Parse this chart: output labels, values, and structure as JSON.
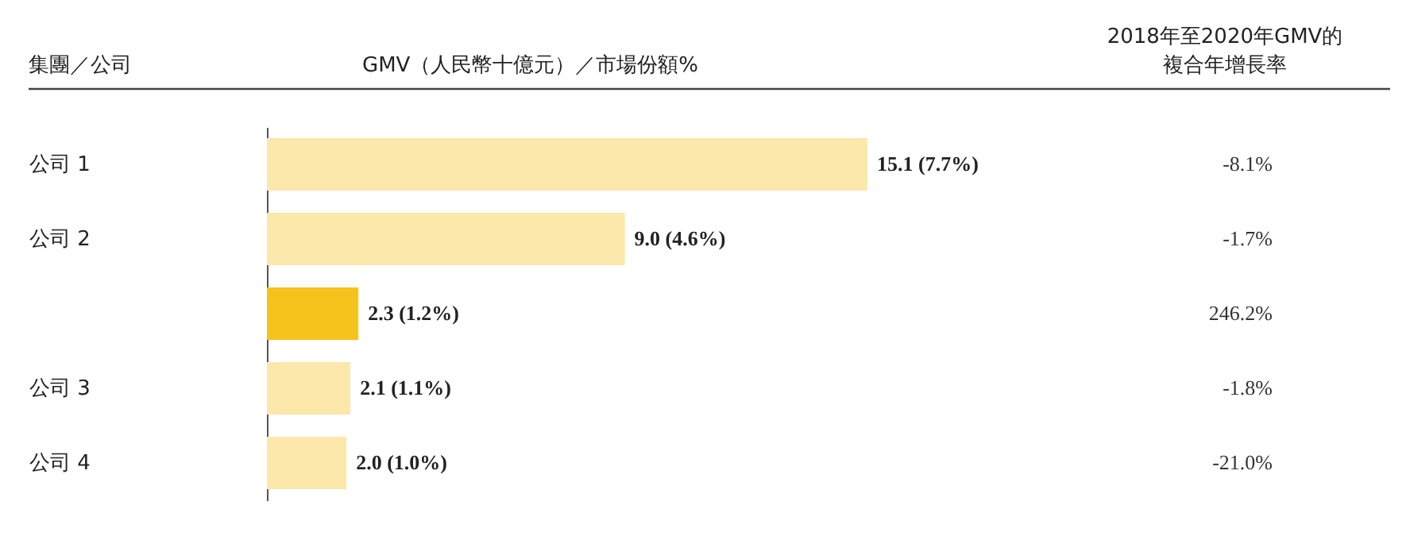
{
  "chart_data": {
    "type": "bar",
    "orientation": "horizontal",
    "categories": [
      "公司 1",
      "公司 2",
      null,
      "公司 3",
      "公司 4"
    ],
    "values": [
      15.1,
      9.0,
      2.3,
      2.1,
      2.0
    ],
    "colors": [
      "#fbe8aa",
      "#fbe8aa",
      "#f6c21c",
      "#fbe8aa",
      "#fbe8aa"
    ],
    "value_labels": [
      "15.1 (7.7%)",
      "9.0 (4.6%)",
      "2.3 (1.2%)",
      "2.1 (1.1%)",
      "2.0 (1.0%)"
    ],
    "annotations": [
      "集團／公司",
      "GMV（人民幣十億元）／市場份額%",
      "2018年至2020年GMV的",
      "複合年增長率",
      "-8.1%",
      "-1.7%",
      "246.2%",
      "-1.8%",
      "-21.0%"
    ],
    "grid": false
  }
}
